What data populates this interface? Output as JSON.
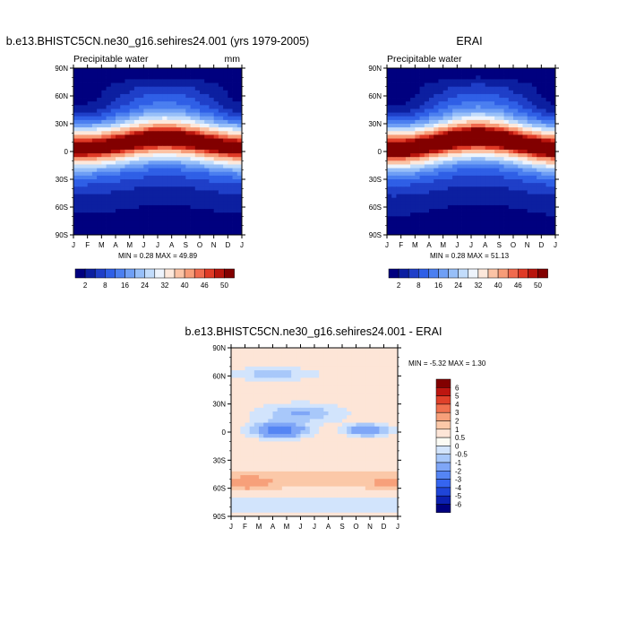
{
  "chart_data": [
    {
      "type": "heatmap",
      "id": "model",
      "title": "b.e13.BHISTC5CN.ne30_g16.sehires24.001 (yrs 1979-2005)",
      "subtitle_left": "Precipitable water",
      "units": "mm",
      "x_categories": [
        "J",
        "F",
        "M",
        "A",
        "M",
        "J",
        "J",
        "A",
        "S",
        "O",
        "N",
        "D",
        "J"
      ],
      "y_ticks": [
        "90N",
        "60N",
        "30N",
        "0",
        "30S",
        "60S",
        "90S"
      ],
      "y_range": [
        -90,
        90
      ],
      "min_max_text": "MIN =   0.28 MAX =  49.89",
      "min": 0.28,
      "max": 49.89,
      "colorbar_labels": [
        "2",
        "8",
        "16",
        "24",
        "32",
        "40",
        "46",
        "50"
      ],
      "colorbar_levels": [
        2,
        5,
        8,
        12,
        16,
        20,
        24,
        28,
        32,
        36,
        40,
        44,
        46,
        48,
        50
      ],
      "peak_value": 49.0,
      "peak_lat_center": 9,
      "peak_lat_amplitude": 5
    },
    {
      "type": "heatmap",
      "id": "obs",
      "title": "ERAI",
      "subtitle_left": "Precipitable water",
      "x_categories": [
        "J",
        "F",
        "M",
        "A",
        "M",
        "J",
        "J",
        "A",
        "S",
        "O",
        "N",
        "D",
        "J"
      ],
      "y_ticks": [
        "90N",
        "60N",
        "30N",
        "0",
        "30S",
        "60S",
        "90S"
      ],
      "y_range": [
        -90,
        90
      ],
      "min_max_text": "MIN =   0.28 MAX =  51.13",
      "min": 0.28,
      "max": 51.13,
      "colorbar_labels": [
        "2",
        "8",
        "16",
        "24",
        "32",
        "40",
        "46",
        "50"
      ],
      "colorbar_levels": [
        2,
        5,
        8,
        12,
        16,
        20,
        24,
        28,
        32,
        36,
        40,
        44,
        46,
        48,
        50
      ],
      "peak_value": 51.0,
      "peak_lat_center": 9,
      "peak_lat_amplitude": 6
    },
    {
      "type": "heatmap",
      "id": "diff",
      "title": "b.e13.BHISTC5CN.ne30_g16.sehires24.001 - ERAI",
      "x_categories": [
        "J",
        "F",
        "M",
        "A",
        "M",
        "J",
        "J",
        "A",
        "S",
        "O",
        "N",
        "D",
        "J"
      ],
      "y_ticks": [
        "90N",
        "60N",
        "30N",
        "0",
        "30S",
        "60S",
        "90S"
      ],
      "y_range": [
        -90,
        90
      ],
      "min_max_text": "MIN =  -5.32 MAX =   1.30",
      "min": -5.32,
      "max": 1.3,
      "colorbar_labels": [
        "6",
        "5",
        "4",
        "3",
        "2",
        "1",
        "0.5",
        "0",
        "-0.5",
        "-1",
        "-2",
        "-3",
        "-4",
        "-5",
        "-6"
      ],
      "colorbar_levels": [
        -6,
        -5,
        -4,
        -3,
        -2,
        -1,
        -0.5,
        0,
        0.5,
        1,
        2,
        3,
        4,
        5,
        6
      ]
    }
  ],
  "colors": {
    "scale": [
      "#00007f",
      "#0c1fa0",
      "#1f3fc8",
      "#2f5fe6",
      "#4b7ff0",
      "#6f9ff5",
      "#97bff8",
      "#c2dcfb",
      "#eef4fc",
      "#fde8db",
      "#fbc3a5",
      "#f79c78",
      "#f06a4e",
      "#df3a26",
      "#b8150d",
      "#820000"
    ]
  }
}
